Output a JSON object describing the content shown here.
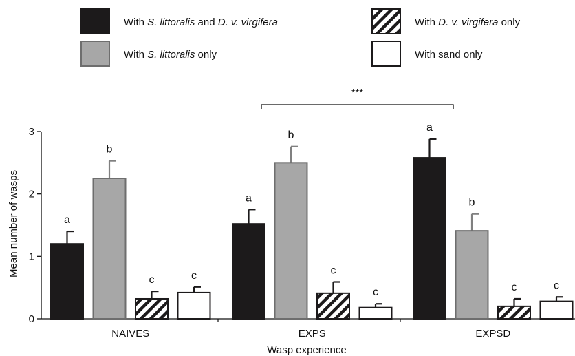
{
  "chart_data": {
    "type": "bar",
    "xlabel": "Wasp experience",
    "ylabel": "Mean number of wasps",
    "ylim": [
      0,
      3
    ],
    "yticks": [
      "0",
      "1",
      "2",
      "3"
    ],
    "categories": [
      "NAIVES",
      "EXPS",
      "EXPSD"
    ],
    "series": [
      {
        "name_parts": [
          {
            "t": "With ",
            "i": false
          },
          {
            "t": "S. littoralis",
            "i": true
          },
          {
            "t": " and ",
            "i": false
          },
          {
            "t": "D. v. virgifera",
            "i": true
          }
        ],
        "fill": "#1c1a1b",
        "pattern": "solid",
        "values": [
          1.2,
          1.52,
          2.58
        ],
        "errors": [
          0.2,
          0.23,
          0.3
        ],
        "letters": [
          "a",
          "a",
          "a"
        ]
      },
      {
        "name_parts": [
          {
            "t": "With ",
            "i": false
          },
          {
            "t": "S. littoralis",
            "i": true
          },
          {
            "t": " only",
            "i": false
          }
        ],
        "fill": "#a7a7a7",
        "pattern": "solid",
        "values": [
          2.25,
          2.5,
          1.41
        ],
        "errors": [
          0.28,
          0.26,
          0.27
        ],
        "letters": [
          "b",
          "b",
          "b"
        ]
      },
      {
        "name_parts": [
          {
            "t": "With ",
            "i": false
          },
          {
            "t": "D. v. virgifera",
            "i": true
          },
          {
            "t": " only",
            "i": false
          }
        ],
        "fill": "#ffffff",
        "pattern": "hatch",
        "values": [
          0.32,
          0.41,
          0.2
        ],
        "errors": [
          0.12,
          0.18,
          0.12
        ],
        "letters": [
          "c",
          "c",
          "c"
        ]
      },
      {
        "name_parts": [
          {
            "t": "With sand only",
            "i": false
          }
        ],
        "fill": "#ffffff",
        "pattern": "solid",
        "values": [
          0.42,
          0.18,
          0.28
        ],
        "errors": [
          0.09,
          0.06,
          0.07
        ],
        "letters": [
          "c",
          "c",
          "c"
        ]
      }
    ],
    "significance": {
      "label": "***",
      "from": "EXPS",
      "to": "EXPSD"
    },
    "legend": {
      "position": "top",
      "columns": 2
    }
  }
}
